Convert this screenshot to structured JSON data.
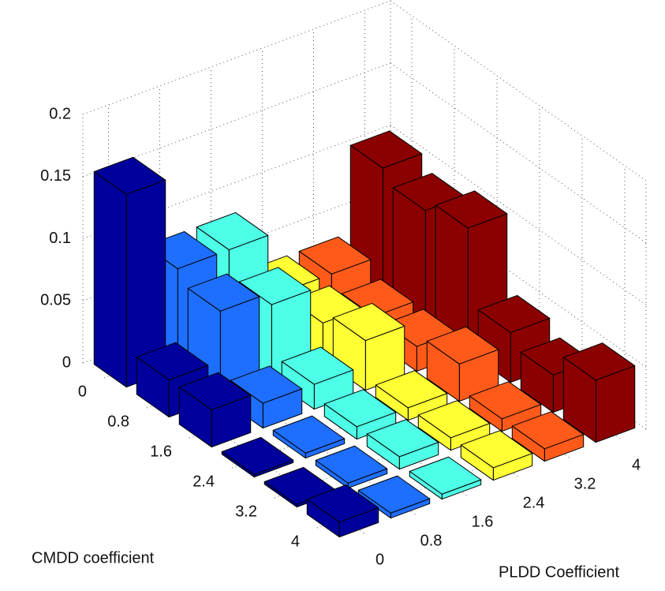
{
  "chart_data": {
    "type": "bar3d",
    "x_label": "CMDD coefficient",
    "y_label": "PLDD Coefficient",
    "x_categories": [
      "0",
      "0.8",
      "1.6",
      "2.4",
      "3.2",
      "4"
    ],
    "y_categories": [
      "0",
      "0.8",
      "1.6",
      "2.4",
      "3.2",
      "4"
    ],
    "series": [
      {
        "color": "#00009c",
        "values": [
          0.155,
          0.03,
          0.03,
          0.002,
          0.002,
          0.012
        ]
      },
      {
        "color": "#1e6eff",
        "values": [
          0.08,
          0.07,
          0.02,
          0.004,
          0.004,
          0.004
        ]
      },
      {
        "color": "#4dffe6",
        "values": [
          0.08,
          0.06,
          0.02,
          0.01,
          0.01,
          0.004
        ]
      },
      {
        "color": "#ffff33",
        "values": [
          0.03,
          0.03,
          0.04,
          0.01,
          0.01,
          0.01
        ]
      },
      {
        "color": "#ff5a1a",
        "values": [
          0.03,
          0.02,
          0.02,
          0.03,
          0.01,
          0.01
        ]
      },
      {
        "color": "#8b0000",
        "values": [
          0.1,
          0.09,
          0.1,
          0.04,
          0.03,
          0.05
        ]
      }
    ],
    "zlim": [
      0,
      0.2
    ],
    "zticks": [
      0,
      0.05,
      0.1,
      0.15,
      0.2
    ],
    "grid": true
  }
}
